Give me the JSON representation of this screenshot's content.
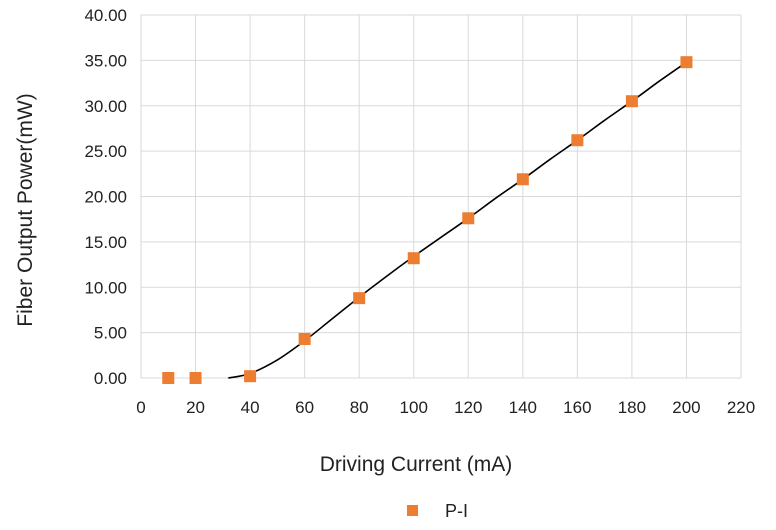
{
  "chart_data": {
    "type": "scatter",
    "xlabel": "Driving Current (mA)",
    "ylabel": "Fiber Output Power(mW)",
    "xlim": [
      0,
      220
    ],
    "ylim": [
      0,
      40
    ],
    "x_ticks": [
      0,
      20,
      40,
      60,
      80,
      100,
      120,
      140,
      160,
      180,
      200,
      220
    ],
    "y_ticks": [
      "0.00",
      "5.00",
      "10.00",
      "15.00",
      "20.00",
      "25.00",
      "30.00",
      "35.00",
      "40.00"
    ],
    "grid": "vertical and horizontal",
    "legend_position": "bottom",
    "series": [
      {
        "name": "P-I",
        "marker": "square",
        "color": "#ED7D31",
        "x": [
          10,
          20,
          40,
          60,
          80,
          100,
          120,
          140,
          160,
          180,
          200
        ],
        "y": [
          0.0,
          0.0,
          0.2,
          4.3,
          8.8,
          13.2,
          17.6,
          21.9,
          26.2,
          30.5,
          34.8
        ]
      }
    ],
    "trendline": {
      "color": "#000000",
      "x": [
        32,
        40,
        50,
        60,
        70,
        80,
        90,
        100,
        110,
        120,
        130,
        140,
        150,
        160,
        170,
        180,
        190,
        200
      ],
      "y": [
        0.0,
        0.5,
        2.0,
        4.1,
        6.5,
        8.9,
        11.2,
        13.4,
        15.5,
        17.6,
        19.8,
        21.9,
        24.1,
        26.2,
        28.4,
        30.5,
        32.7,
        34.8
      ]
    }
  }
}
